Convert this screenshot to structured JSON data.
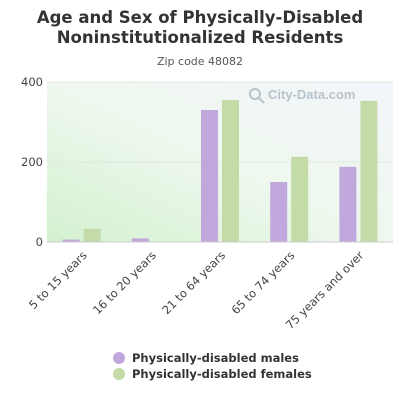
{
  "title_line1": "Age and Sex of Physically-Disabled",
  "title_line2": "Noninstitutionalized Residents",
  "subtitle": "Zip code 48082",
  "watermark": "City-Data.com",
  "colors": {
    "males": "#c0a8dc",
    "females": "#c4dba8"
  },
  "chart_data": {
    "type": "bar",
    "title": "Age and Sex of Physically-Disabled Noninstitutionalized Residents",
    "subtitle": "Zip code 48082",
    "categories": [
      "5 to 15 years",
      "16 to 20 years",
      "21 to 64 years",
      "65 to 74 years",
      "75 years and over"
    ],
    "series": [
      {
        "name": "Physically-disabled males",
        "values": [
          6,
          9,
          330,
          150,
          188
        ]
      },
      {
        "name": "Physically-disabled females",
        "values": [
          33,
          0,
          355,
          213,
          353
        ]
      }
    ],
    "yticks": [
      0,
      200,
      400
    ],
    "ylim": [
      0,
      400
    ],
    "grid": true,
    "legend": "bottom"
  }
}
